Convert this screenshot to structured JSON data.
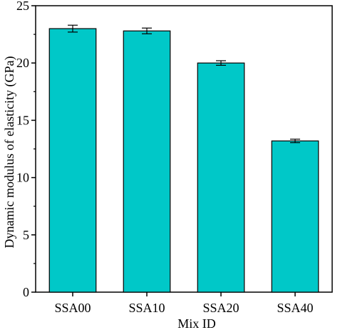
{
  "chart_data": {
    "type": "bar",
    "categories": [
      "SSA00",
      "SSA10",
      "SSA20",
      "SSA40"
    ],
    "values": [
      23.0,
      22.8,
      20.0,
      13.2
    ],
    "errors": [
      0.3,
      0.25,
      0.2,
      0.15
    ],
    "xlabel": "Mix ID",
    "ylabel": "Dynamic modulus of elasticity (GPa)",
    "ylim": [
      0,
      25
    ],
    "yticks": [
      0,
      5,
      10,
      15,
      20,
      25
    ],
    "grid": false,
    "bar_color": "#00c8c8",
    "bar_edge_color": "#000000"
  }
}
